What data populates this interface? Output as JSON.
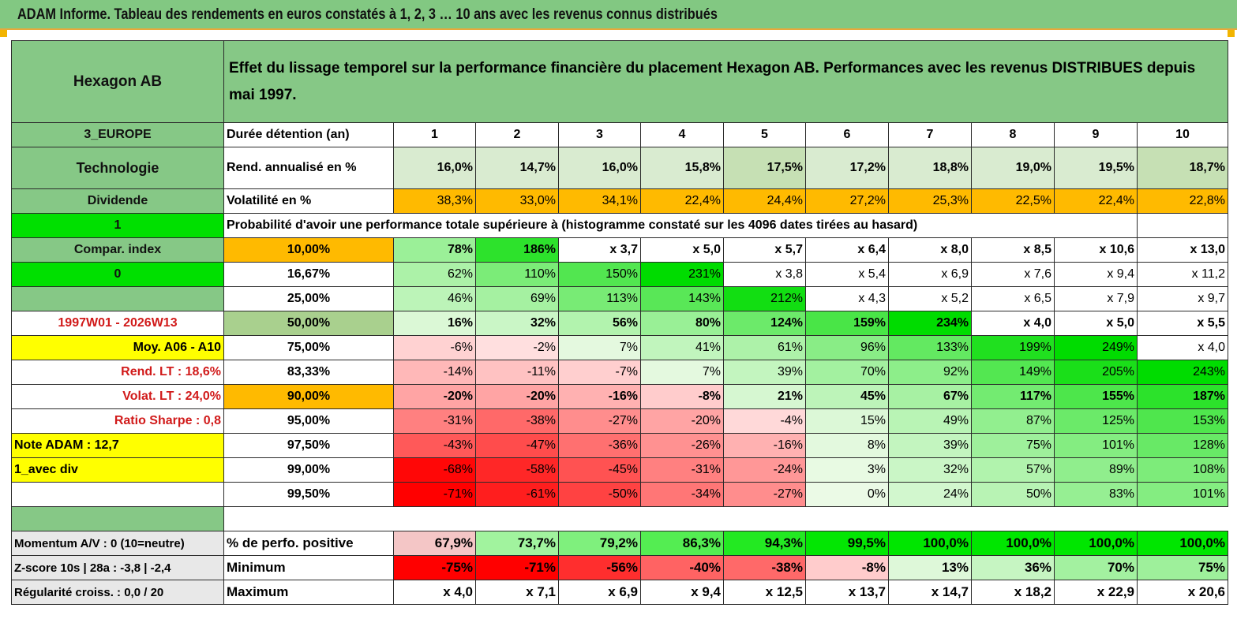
{
  "title": "ADAM Informe. Tableau des rendements en euros constatés à 1, 2, 3 … 10 ans avec les revenus connus distribués",
  "header": {
    "name": "Hexagon AB",
    "description": "Effet du lissage temporel sur la performance financière du placement Hexagon AB. Performances avec les revenus DISTRIBUES depuis mai 1997."
  },
  "side": {
    "region": "3_EUROPE",
    "sector": "Technologie",
    "dividend_label": "Dividende",
    "flag1": "1",
    "compar_index": "Compar. index",
    "flag0": "0",
    "blank": "",
    "period": "1997W01 - 2026W13",
    "moy": "Moy. A06 - A10",
    "rend_lt": "Rend. LT :   18,6%",
    "volat_lt": "Volat. LT :   24,0%",
    "sharpe": "Ratio Sharpe :    0,8",
    "note": "Note ADAM : 12,7",
    "avec_div": "1_avec div"
  },
  "row_labels": {
    "duree": "Durée détention (an)",
    "rend": "Rend. annualisé en %",
    "vol": "Volatilité en %",
    "prob": "Probabilité d'avoir une performance totale supérieure à (histogramme constaté sur les 4096 dates tirées au hasard)"
  },
  "years": [
    "1",
    "2",
    "3",
    "4",
    "5",
    "6",
    "7",
    "8",
    "9",
    "10"
  ],
  "rend": [
    "16,0%",
    "14,7%",
    "16,0%",
    "15,8%",
    "17,5%",
    "17,2%",
    "18,8%",
    "19,0%",
    "19,5%",
    "18,7%"
  ],
  "vol": [
    "38,3%",
    "33,0%",
    "34,1%",
    "22,4%",
    "24,4%",
    "27,2%",
    "25,3%",
    "22,5%",
    "22,4%",
    "22,8%"
  ],
  "prob_rows": [
    {
      "p": "10,00%",
      "v": [
        "78%",
        "186%",
        "x 3,7",
        "x 5,0",
        "x 5,7",
        "x 6,4",
        "x 8,0",
        "x 8,5",
        "x 10,6",
        "x 13,0"
      ]
    },
    {
      "p": "16,67%",
      "v": [
        "62%",
        "110%",
        "150%",
        "231%",
        "x 3,8",
        "x 5,4",
        "x 6,9",
        "x 7,6",
        "x 9,4",
        "x 11,2"
      ]
    },
    {
      "p": "25,00%",
      "v": [
        "46%",
        "69%",
        "113%",
        "143%",
        "212%",
        "x 4,3",
        "x 5,2",
        "x 6,5",
        "x 7,9",
        "x 9,7"
      ]
    },
    {
      "p": "50,00%",
      "v": [
        "16%",
        "32%",
        "56%",
        "80%",
        "124%",
        "159%",
        "234%",
        "x 4,0",
        "x 5,0",
        "x 5,5"
      ]
    },
    {
      "p": "75,00%",
      "v": [
        "-6%",
        "-2%",
        "7%",
        "41%",
        "61%",
        "96%",
        "133%",
        "199%",
        "249%",
        "x 4,0"
      ]
    },
    {
      "p": "83,33%",
      "v": [
        "-14%",
        "-11%",
        "-7%",
        "7%",
        "39%",
        "70%",
        "92%",
        "149%",
        "205%",
        "243%"
      ]
    },
    {
      "p": "90,00%",
      "v": [
        "-20%",
        "-20%",
        "-16%",
        "-8%",
        "21%",
        "45%",
        "67%",
        "117%",
        "155%",
        "187%"
      ]
    },
    {
      "p": "95,00%",
      "v": [
        "-31%",
        "-38%",
        "-27%",
        "-20%",
        "-4%",
        "15%",
        "49%",
        "87%",
        "125%",
        "153%"
      ]
    },
    {
      "p": "97,50%",
      "v": [
        "-43%",
        "-47%",
        "-36%",
        "-26%",
        "-16%",
        "8%",
        "39%",
        "75%",
        "101%",
        "128%"
      ]
    },
    {
      "p": "99,00%",
      "v": [
        "-68%",
        "-58%",
        "-45%",
        "-31%",
        "-24%",
        "3%",
        "32%",
        "57%",
        "89%",
        "108%"
      ]
    },
    {
      "p": "99,50%",
      "v": [
        "-71%",
        "-61%",
        "-50%",
        "-34%",
        "-27%",
        "0%",
        "24%",
        "50%",
        "83%",
        "101%"
      ]
    }
  ],
  "bottom": {
    "momentum": "Momentum A/V : 0 (10=neutre)",
    "zscore": "Z-score 10s | 28a : -3,8 | -2,4",
    "regul": "Régularité croiss. : 0,0 / 20",
    "pos_label": "% de perfo. positive",
    "min_label": "Minimum",
    "max_label": "Maximum",
    "pos": [
      "67,9%",
      "73,7%",
      "79,2%",
      "86,3%",
      "94,3%",
      "99,5%",
      "100,0%",
      "100,0%",
      "100,0%",
      "100,0%"
    ],
    "min": [
      "-75%",
      "-71%",
      "-56%",
      "-40%",
      "-38%",
      "-8%",
      "13%",
      "36%",
      "70%",
      "75%"
    ],
    "max": [
      "x 4,0",
      "x 7,1",
      "x 6,9",
      "x 9,4",
      "x 12,5",
      "x 13,7",
      "x 14,7",
      "x 18,2",
      "x 22,9",
      "x 20,6"
    ]
  },
  "colors": {
    "header_green": "#86c886",
    "bright_green": "#00e000",
    "orange": "#ffba00",
    "yellow": "#ffff00",
    "red_text": "#d11a1a"
  }
}
